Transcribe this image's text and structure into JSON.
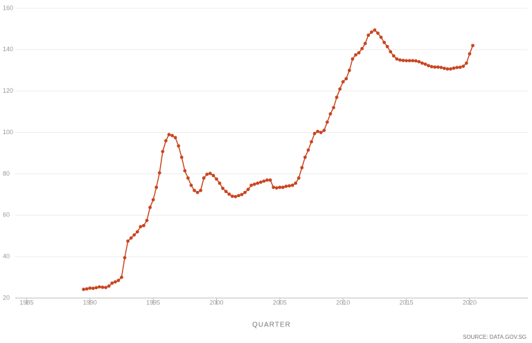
{
  "chart_data": {
    "type": "line",
    "x_label": "QUARTER",
    "source": "SOURCE: DATA.GOV.SG",
    "x": [
      1989.5,
      1989.75,
      1990,
      1990.25,
      1990.5,
      1990.75,
      1991,
      1991.25,
      1991.5,
      1991.75,
      1992,
      1992.25,
      1992.5,
      1992.75,
      1993,
      1993.25,
      1993.5,
      1993.75,
      1994,
      1994.25,
      1994.5,
      1994.75,
      1995,
      1995.25,
      1995.5,
      1995.75,
      1996,
      1996.25,
      1996.5,
      1996.75,
      1997,
      1997.25,
      1997.5,
      1997.75,
      1998,
      1998.25,
      1998.5,
      1998.75,
      1999,
      1999.25,
      1999.5,
      1999.75,
      2000,
      2000.25,
      2000.5,
      2000.75,
      2001,
      2001.25,
      2001.5,
      2001.75,
      2002,
      2002.25,
      2002.5,
      2002.75,
      2003,
      2003.25,
      2003.5,
      2003.75,
      2004,
      2004.25,
      2004.5,
      2004.75,
      2005,
      2005.25,
      2005.5,
      2005.75,
      2006,
      2006.25,
      2006.5,
      2006.75,
      2007,
      2007.25,
      2007.5,
      2007.75,
      2008,
      2008.25,
      2008.5,
      2008.75,
      2009,
      2009.25,
      2009.5,
      2009.75,
      2010,
      2010.25,
      2010.5,
      2010.75,
      2011,
      2011.25,
      2011.5,
      2011.75,
      2012,
      2012.25,
      2012.5,
      2012.75,
      2013,
      2013.25,
      2013.5,
      2013.75,
      2014,
      2014.25,
      2014.5,
      2014.75,
      2015,
      2015.25,
      2015.5,
      2015.75,
      2016,
      2016.25,
      2016.5,
      2016.75,
      2017,
      2017.25,
      2017.5,
      2017.75,
      2018,
      2018.25,
      2018.5,
      2018.75,
      2019,
      2019.25,
      2019.5,
      2019.75,
      2020,
      2020.25
    ],
    "series": [
      {
        "color": "#c9451f",
        "values": [
          24.2,
          24.4,
          24.8,
          24.7,
          25.0,
          25.4,
          25.2,
          25.1,
          25.8,
          27.2,
          27.8,
          28.5,
          30.0,
          39.5,
          47.5,
          49.0,
          50.5,
          52.0,
          54.5,
          55.0,
          57.5,
          63.8,
          67.5,
          73.5,
          80.5,
          90.8,
          96.0,
          99.0,
          98.5,
          97.5,
          93.5,
          88.0,
          81.5,
          78.0,
          74.5,
          72.0,
          71.0,
          72.0,
          78.0,
          79.8,
          80.2,
          79.2,
          77.5,
          75.5,
          73.0,
          71.5,
          70.2,
          69.2,
          69.0,
          69.5,
          70.0,
          71.0,
          72.5,
          74.5,
          75.0,
          75.5,
          76.0,
          76.5,
          77.0,
          77.0,
          73.5,
          73.2,
          73.5,
          73.5,
          74.0,
          74.2,
          74.5,
          75.5,
          78.0,
          83.0,
          88.0,
          91.5,
          95.5,
          99.5,
          100.5,
          100.0,
          101.0,
          105.0,
          109.0,
          112.0,
          117.0,
          121.0,
          124.5,
          126.0,
          130.0,
          135.5,
          137.5,
          138.5,
          140.5,
          143.0,
          147.0,
          148.5,
          149.5,
          148.0,
          146.0,
          143.5,
          141.5,
          139.0,
          137.0,
          135.5,
          135.0,
          134.8,
          134.7,
          134.7,
          134.7,
          134.6,
          134.2,
          133.5,
          133.0,
          132.3,
          131.8,
          131.6,
          131.6,
          131.4,
          131.0,
          130.7,
          130.7,
          131.1,
          131.4,
          131.5,
          132.0,
          133.5,
          138.0,
          142.0
        ]
      }
    ],
    "xlim": [
      1984.1,
      2024.6
    ],
    "xticks": [
      1985,
      1990,
      1995,
      2000,
      2005,
      2010,
      2015,
      2020
    ],
    "ylim": [
      20,
      160
    ],
    "yticks": [
      20,
      40,
      60,
      80,
      100,
      120,
      140,
      160
    ],
    "grid": true
  }
}
